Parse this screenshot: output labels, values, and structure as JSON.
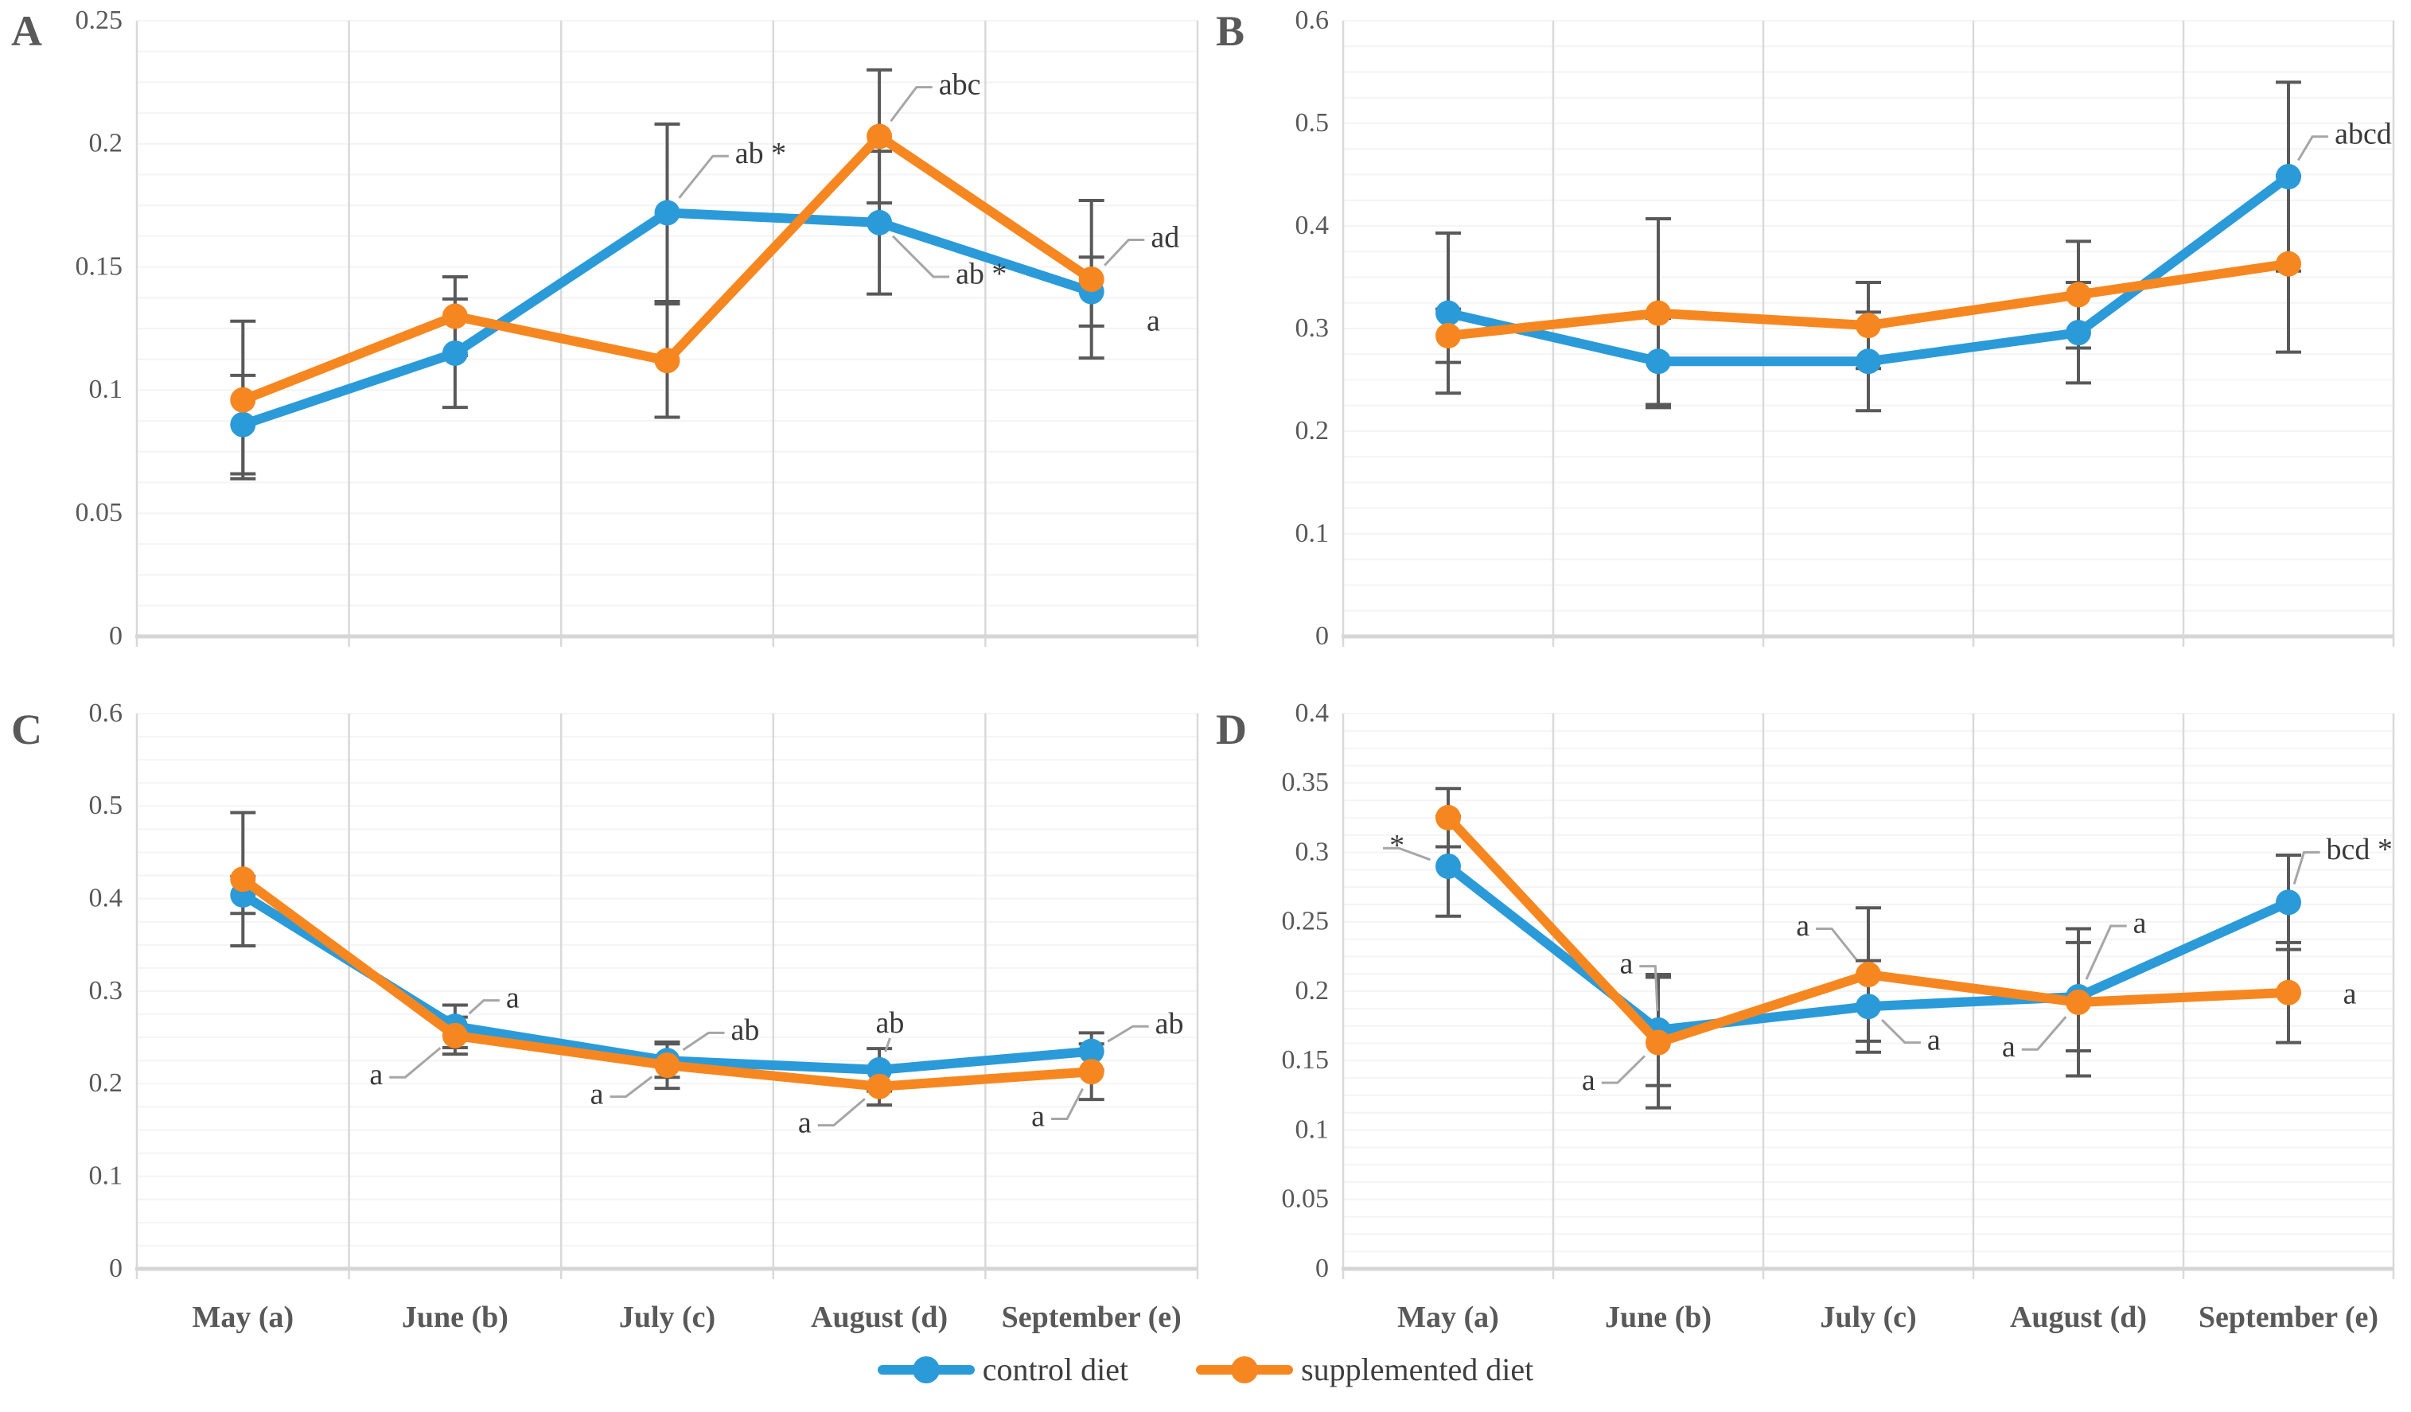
{
  "figure": {
    "panel_letters": [
      "A",
      "B",
      "C",
      "D"
    ],
    "categories": [
      "May (a)",
      "June (b)",
      "July (c)",
      "August (d)",
      "September (e)"
    ],
    "legend": [
      {
        "label": "control diet",
        "color": "#2B9AD9"
      },
      {
        "label": "supplemented diet",
        "color": "#F68720"
      }
    ],
    "colors": {
      "control": "#2B9AD9",
      "supplemented": "#F68720",
      "axis_text": "#595959",
      "gridline": "#D9D9D9",
      "minor_gridline": "#F4F4F4",
      "axis_line": "#D6D6D6",
      "error_bar": "#595959",
      "leader": "#A6A6A6",
      "annotation_text": "#3A3A3A"
    }
  },
  "chart_data": [
    {
      "type": "line",
      "panel": "A",
      "title": "",
      "xlabel": "",
      "ylabel": "",
      "categories": [
        "May (a)",
        "June (b)",
        "July (c)",
        "August (d)",
        "September (e)"
      ],
      "ylim": [
        0,
        0.25
      ],
      "ytick_step": 0.05,
      "ytick_labels": [
        "0",
        "0.05",
        "0.1",
        "0.15",
        "0.2",
        "0.25"
      ],
      "legend_position": "bottom",
      "grid": "vertical-major",
      "series": [
        {
          "name": "control diet",
          "values": [
            0.086,
            0.115,
            0.172,
            0.168,
            0.14
          ],
          "errors": [
            0.02,
            0.022,
            0.036,
            0.029,
            0.014
          ]
        },
        {
          "name": "supplemented diet",
          "values": [
            0.096,
            0.13,
            0.112,
            0.203,
            0.145
          ],
          "errors": [
            0.032,
            0.016,
            0.023,
            0.027,
            0.032
          ]
        }
      ],
      "annotations": [
        {
          "text": "ab *",
          "series": 0,
          "point": 2,
          "lx": 2.32,
          "ly": 0.195,
          "anchor": "start",
          "leader": true
        },
        {
          "text": "abc",
          "series": 1,
          "point": 3,
          "lx": 3.28,
          "ly": 0.223,
          "anchor": "start",
          "leader": true
        },
        {
          "text": "ab *",
          "series": 0,
          "point": 3,
          "lx": 3.36,
          "ly": 0.146,
          "anchor": "start",
          "leader": true
        },
        {
          "text": "ad",
          "series": 1,
          "point": 4,
          "lx": 4.28,
          "ly": 0.161,
          "anchor": "start",
          "leader": true
        },
        {
          "text": "a",
          "series": 0,
          "point": 4,
          "lx": 4.26,
          "ly": 0.127,
          "anchor": "start",
          "leader": false
        }
      ]
    },
    {
      "type": "line",
      "panel": "B",
      "title": "",
      "xlabel": "",
      "ylabel": "",
      "categories": [
        "May (a)",
        "June (b)",
        "July (c)",
        "August (d)",
        "September (e)"
      ],
      "ylim": [
        0,
        0.6
      ],
      "ytick_step": 0.1,
      "ytick_labels": [
        "0",
        "0.1",
        "0.2",
        "0.3",
        "0.4",
        "0.5",
        "0.6"
      ],
      "legend_position": "bottom",
      "grid": "vertical-major",
      "series": [
        {
          "name": "control diet",
          "values": [
            0.315,
            0.268,
            0.268,
            0.296,
            0.448
          ],
          "errors": [
            0.078,
            0.042,
            0.048,
            0.049,
            0.092
          ]
        },
        {
          "name": "supplemented diet",
          "values": [
            0.293,
            0.315,
            0.303,
            0.333,
            0.363
          ],
          "errors": [
            0.026,
            0.092,
            0.042,
            0.052,
            0.086
          ]
        }
      ],
      "annotations": [
        {
          "text": "abcd",
          "series": 0,
          "point": 4,
          "lx": 4.22,
          "ly": 0.487,
          "anchor": "start",
          "leader": true
        }
      ]
    },
    {
      "type": "line",
      "panel": "C",
      "title": "",
      "xlabel": "",
      "ylabel": "",
      "categories": [
        "May (a)",
        "June (b)",
        "July (c)",
        "August (d)",
        "September (e)"
      ],
      "ylim": [
        0,
        0.6
      ],
      "ytick_step": 0.1,
      "ytick_labels": [
        "0",
        "0.1",
        "0.2",
        "0.3",
        "0.4",
        "0.5",
        "0.6"
      ],
      "legend_position": "bottom",
      "grid": "vertical-major",
      "series": [
        {
          "name": "control diet",
          "values": [
            0.404,
            0.262,
            0.225,
            0.215,
            0.235
          ],
          "errors": [
            0.02,
            0.023,
            0.018,
            0.023,
            0.02
          ]
        },
        {
          "name": "supplemented diet",
          "values": [
            0.421,
            0.252,
            0.22,
            0.197,
            0.213
          ],
          "errors": [
            0.072,
            0.02,
            0.025,
            0.02,
            0.03
          ]
        }
      ],
      "annotations": [
        {
          "text": "a",
          "series": 0,
          "point": 1,
          "lx": 1.24,
          "ly": 0.29,
          "anchor": "start",
          "leader": true
        },
        {
          "text": "a",
          "series": 1,
          "point": 1,
          "lx": 0.66,
          "ly": 0.207,
          "anchor": "end",
          "leader": true
        },
        {
          "text": "ab",
          "series": 0,
          "point": 2,
          "lx": 2.3,
          "ly": 0.255,
          "anchor": "start",
          "leader": true
        },
        {
          "text": "a",
          "series": 1,
          "point": 2,
          "lx": 1.7,
          "ly": 0.186,
          "anchor": "end",
          "leader": true
        },
        {
          "text": "ab",
          "series": 0,
          "point": 3,
          "lx": 3.05,
          "ly": 0.263,
          "anchor": "middle",
          "leader": true
        },
        {
          "text": "a",
          "series": 1,
          "point": 3,
          "lx": 2.68,
          "ly": 0.155,
          "anchor": "end",
          "leader": true
        },
        {
          "text": "ab",
          "series": 0,
          "point": 4,
          "lx": 4.3,
          "ly": 0.262,
          "anchor": "start",
          "leader": true
        },
        {
          "text": "a",
          "series": 1,
          "point": 4,
          "lx": 3.78,
          "ly": 0.162,
          "anchor": "end",
          "leader": true
        }
      ]
    },
    {
      "type": "line",
      "panel": "D",
      "title": "",
      "xlabel": "",
      "ylabel": "",
      "categories": [
        "May (a)",
        "June (b)",
        "July (c)",
        "August (d)",
        "September (e)"
      ],
      "ylim": [
        0,
        0.4
      ],
      "ytick_step": 0.05,
      "ytick_labels": [
        "0",
        "0.05",
        "0.1",
        "0.15",
        "0.2",
        "0.25",
        "0.3",
        "0.35",
        "0.4"
      ],
      "legend_position": "bottom",
      "grid": "vertical-major",
      "series": [
        {
          "name": "control diet",
          "values": [
            0.29,
            0.172,
            0.189,
            0.196,
            0.264
          ],
          "errors": [
            0.036,
            0.04,
            0.033,
            0.039,
            0.034
          ]
        },
        {
          "name": "supplemented diet",
          "values": [
            0.325,
            0.163,
            0.212,
            0.192,
            0.199
          ],
          "errors": [
            0.021,
            0.047,
            0.048,
            0.053,
            0.036
          ]
        }
      ],
      "annotations": [
        {
          "text": "*",
          "series": 0,
          "point": 0,
          "lx": -0.28,
          "ly": 0.303,
          "anchor": "start",
          "leader": true
        },
        {
          "text": "a",
          "series": 0,
          "point": 1,
          "lx": 0.88,
          "ly": 0.218,
          "anchor": "end",
          "leader": true
        },
        {
          "text": "a",
          "series": 1,
          "point": 1,
          "lx": 0.7,
          "ly": 0.134,
          "anchor": "end",
          "leader": true
        },
        {
          "text": "a",
          "series": 1,
          "point": 2,
          "lx": 1.72,
          "ly": 0.245,
          "anchor": "end",
          "leader": true
        },
        {
          "text": "a",
          "series": 0,
          "point": 2,
          "lx": 2.28,
          "ly": 0.163,
          "anchor": "start",
          "leader": true
        },
        {
          "text": "a",
          "series": 0,
          "point": 3,
          "lx": 3.26,
          "ly": 0.247,
          "anchor": "start",
          "leader": true
        },
        {
          "text": "a",
          "series": 1,
          "point": 3,
          "lx": 2.7,
          "ly": 0.158,
          "anchor": "end",
          "leader": true
        },
        {
          "text": "bcd *",
          "series": 0,
          "point": 4,
          "lx": 4.18,
          "ly": 0.3,
          "anchor": "start",
          "leader": true
        },
        {
          "text": "a",
          "series": 1,
          "point": 4,
          "lx": 4.26,
          "ly": 0.196,
          "anchor": "start",
          "leader": false
        }
      ]
    }
  ]
}
